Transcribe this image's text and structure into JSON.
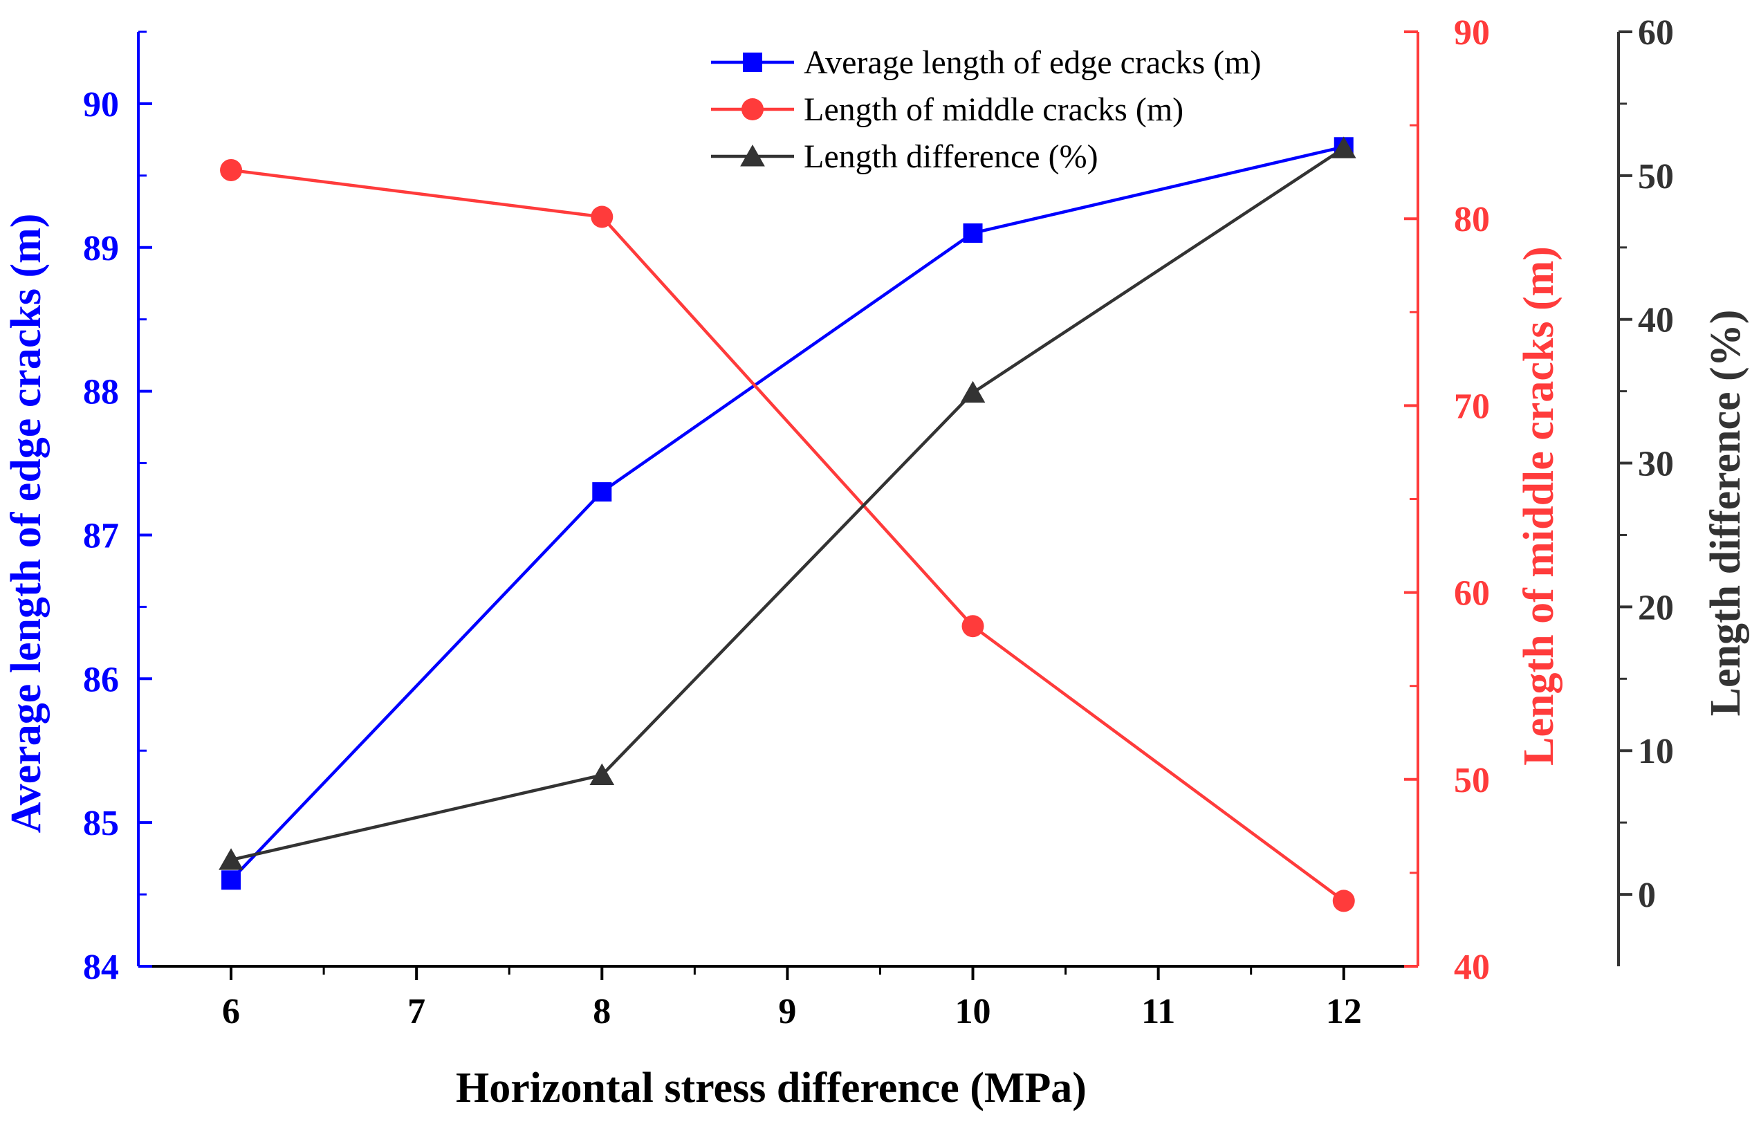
{
  "chart_data": {
    "type": "line",
    "xlabel": "Horizontal stress difference (MPa)",
    "x_ticks": [
      "6",
      "7",
      "8",
      "9",
      "10",
      "11",
      "12"
    ],
    "xlim": [
      5.5,
      12.4
    ],
    "x": [
      6,
      8,
      10,
      12
    ],
    "axes": {
      "left": {
        "label": "Average length of edge cracks (m)",
        "color": "#0000ff",
        "ylim": [
          84,
          90.5
        ],
        "ticks": [
          "84",
          "85",
          "86",
          "87",
          "88",
          "89",
          "90"
        ]
      },
      "right1": {
        "label": "Length of middle cracks (m)",
        "color": "#ff3b3b",
        "ylim": [
          40,
          90
        ],
        "ticks": [
          "40",
          "50",
          "60",
          "70",
          "80",
          "90"
        ]
      },
      "right2": {
        "label": "Length difference (%)",
        "color": "#333333",
        "ylim": [
          -5,
          60
        ],
        "ticks": [
          "0",
          "10",
          "20",
          "30",
          "40",
          "50",
          "60"
        ]
      }
    },
    "series": [
      {
        "name": "Average length of edge cracks (m)",
        "axis": "left",
        "marker": "square",
        "color": "#0000ff",
        "values": [
          84.6,
          87.3,
          89.1,
          89.7
        ]
      },
      {
        "name": "Length of middle cracks (m)",
        "axis": "right1",
        "marker": "circle",
        "color": "#ff3b3b",
        "values": [
          82.6,
          80.1,
          58.2,
          43.5
        ]
      },
      {
        "name": "Length difference (%)",
        "axis": "right2",
        "marker": "triangle",
        "color": "#333333",
        "values": [
          2.4,
          8.3,
          34.9,
          51.9
        ]
      }
    ],
    "legend": {
      "position": "top-center",
      "entries": [
        "Average length of edge cracks (m)",
        "Length of middle cracks (m)",
        "Length difference (%)"
      ]
    },
    "grid": false
  }
}
